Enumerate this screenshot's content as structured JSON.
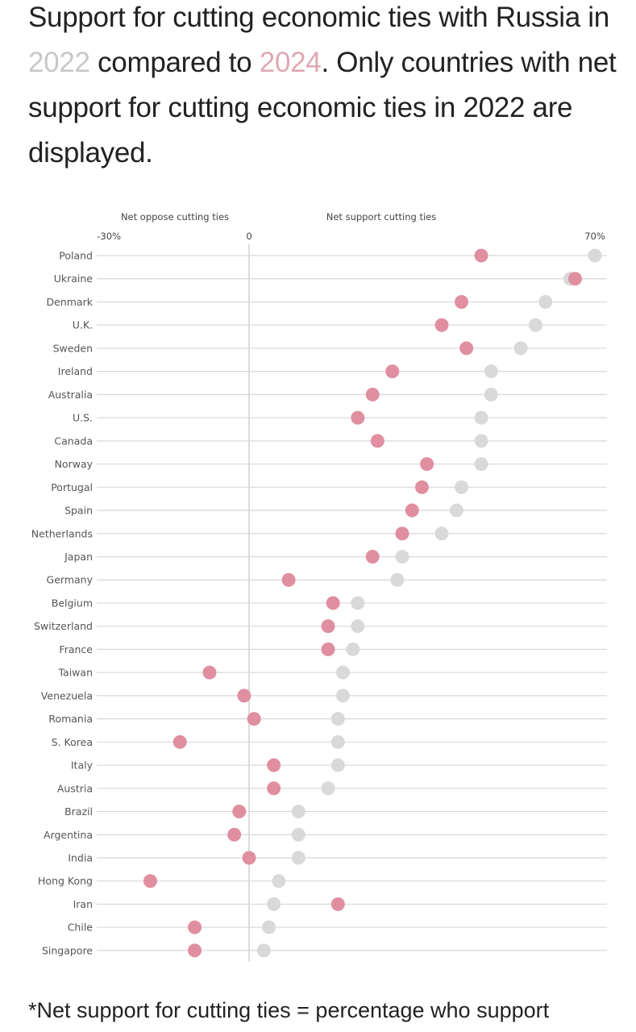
{
  "title": {
    "part1": "Support for cutting economic ties with Russia in ",
    "year_a": "2022",
    "part2": " compared to ",
    "year_b": "2024",
    "part3": ". Only countries with net support for cutting economic ties in 2022 are displayed."
  },
  "footnote": "*Net support for cutting ties = percentage who support",
  "colors": {
    "y2022": "#d9d9d9",
    "y2024": "#e08fa0",
    "grid": "#d8d8d8",
    "zero": "#b8b8b8"
  },
  "chart_data": {
    "type": "scatter",
    "subtype": "dumbbell",
    "title": "Support for cutting economic ties with Russia in 2022 compared to 2024",
    "xlabel_left": "Net oppose cutting ties",
    "xlabel_right": "Net support cutting ties",
    "xlim": [
      -30,
      70
    ],
    "xticks": [
      {
        "value": -30,
        "label": "-30%"
      },
      {
        "value": 0,
        "label": "0"
      },
      {
        "value": 70,
        "label": "70%"
      }
    ],
    "categories": [
      "Poland",
      "Ukraine",
      "Denmark",
      "U.K.",
      "Sweden",
      "Ireland",
      "Australia",
      "U.S.",
      "Canada",
      "Norway",
      "Portugal",
      "Spain",
      "Netherlands",
      "Japan",
      "Germany",
      "Belgium",
      "Switzerland",
      "France",
      "Taiwan",
      "Venezuela",
      "Romania",
      "S. Korea",
      "Italy",
      "Austria",
      "Brazil",
      "Argentina",
      "India",
      "Hong Kong",
      "Iran",
      "Chile",
      "Singapore"
    ],
    "series": [
      {
        "name": "2022",
        "color": "#d9d9d9",
        "values": [
          70,
          65,
          60,
          58,
          55,
          49,
          49,
          47,
          47,
          47,
          43,
          42,
          39,
          31,
          30,
          22,
          22,
          21,
          19,
          19,
          18,
          18,
          18,
          16,
          10,
          10,
          10,
          6,
          5,
          4,
          3
        ]
      },
      {
        "name": "2024",
        "color": "#e08fa0",
        "values": [
          47,
          66,
          43,
          39,
          44,
          29,
          25,
          22,
          26,
          36,
          35,
          33,
          31,
          25,
          8,
          17,
          16,
          16,
          -8,
          -1,
          1,
          -14,
          5,
          5,
          -2,
          -3,
          0,
          -20,
          18,
          -11,
          -11
        ]
      }
    ]
  }
}
